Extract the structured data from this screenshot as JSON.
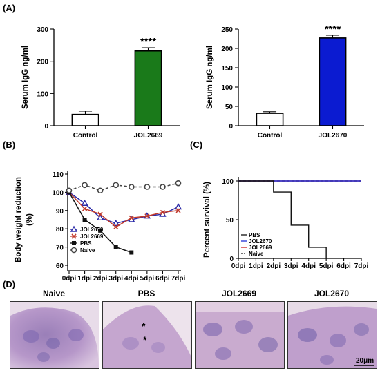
{
  "panels": {
    "A": "(A)",
    "B": "(B)",
    "C": "(C)",
    "D": "(D)"
  },
  "chart_data": [
    {
      "id": "A-left",
      "type": "bar",
      "ylabel": "Serum IgG ng/ml",
      "categories": [
        "Control",
        "JOL2669"
      ],
      "values": [
        35,
        232
      ],
      "errors": [
        10,
        10
      ],
      "bar_colors": [
        "#ffffff",
        "#1a7a1a"
      ],
      "ylim": [
        0,
        300
      ],
      "yticks": [
        0,
        100,
        200,
        300
      ],
      "significance": [
        "",
        "****"
      ]
    },
    {
      "id": "A-right",
      "type": "bar",
      "ylabel": "Serum IgG ng/ml",
      "categories": [
        "Control",
        "JOL2670"
      ],
      "values": [
        32,
        227
      ],
      "errors": [
        4,
        7
      ],
      "bar_colors": [
        "#ffffff",
        "#0b1bd1"
      ],
      "ylim": [
        0,
        250
      ],
      "yticks": [
        0,
        50,
        100,
        150,
        200,
        250
      ],
      "significance": [
        "",
        "****"
      ]
    },
    {
      "id": "B",
      "type": "line",
      "ylabel": "Body weight reduction (%)",
      "ylabel_lines": [
        "Body weight reduction",
        "(%)"
      ],
      "categories": [
        "0dpi",
        "1dpi",
        "2dpi",
        "3dpi",
        "4dpi",
        "5dpi",
        "6dpi",
        "7dpi"
      ],
      "ylim": [
        60,
        110
      ],
      "yticks": [
        60,
        70,
        80,
        90,
        100,
        110
      ],
      "series": [
        {
          "name": "JOL2670",
          "color": "#2a2aa8",
          "marker": "triangle",
          "dash": false,
          "values": [
            100,
            94,
            86,
            83,
            85,
            87,
            88,
            92
          ]
        },
        {
          "name": "JOL2669",
          "color": "#c0392b",
          "marker": "cross",
          "dash": false,
          "values": [
            100,
            91,
            88,
            81,
            86,
            87,
            89,
            90
          ]
        },
        {
          "name": "PBS",
          "color": "#111111",
          "marker": "square",
          "dash": false,
          "values": [
            100,
            85,
            79,
            70,
            67,
            null,
            null,
            null
          ]
        },
        {
          "name": "Naive",
          "color": "#444444",
          "marker": "circle",
          "dash": true,
          "values": [
            101,
            104,
            101,
            104,
            103,
            103,
            103,
            105
          ]
        }
      ],
      "legend_position": "bottom-left"
    },
    {
      "id": "C",
      "type": "line",
      "ylabel": "Percent survival (%)",
      "categories": [
        "0dpi",
        "1dpi",
        "2dpi",
        "3dpi",
        "4dpi",
        "5dpi",
        "6dpi",
        "7dpi"
      ],
      "ylim": [
        0,
        100
      ],
      "yticks": [
        0,
        50,
        100
      ],
      "step": true,
      "series": [
        {
          "name": "PBS",
          "color": "#111111",
          "dash": false,
          "x": [
            0,
            2,
            3,
            4,
            5
          ],
          "values": [
            100,
            85.7,
            42.9,
            14.3,
            0
          ]
        },
        {
          "name": "JOL2670",
          "color": "#1f2fd6",
          "dash": false,
          "x": [
            0,
            7
          ],
          "values": [
            100,
            100
          ]
        },
        {
          "name": "JOL2669",
          "color": "#d02020",
          "dash": false,
          "x": [
            0,
            7
          ],
          "values": [
            100,
            100
          ]
        },
        {
          "name": "Naive",
          "color": "#222222",
          "dash": true,
          "x": [
            0,
            7
          ],
          "values": [
            100,
            100
          ]
        }
      ],
      "legend_position": "bottom-left"
    }
  ],
  "histology": {
    "panels": [
      "Naive",
      "PBS",
      "JOL2669",
      "JOL2670"
    ],
    "scale_bar": "20μm",
    "marker": "*"
  }
}
